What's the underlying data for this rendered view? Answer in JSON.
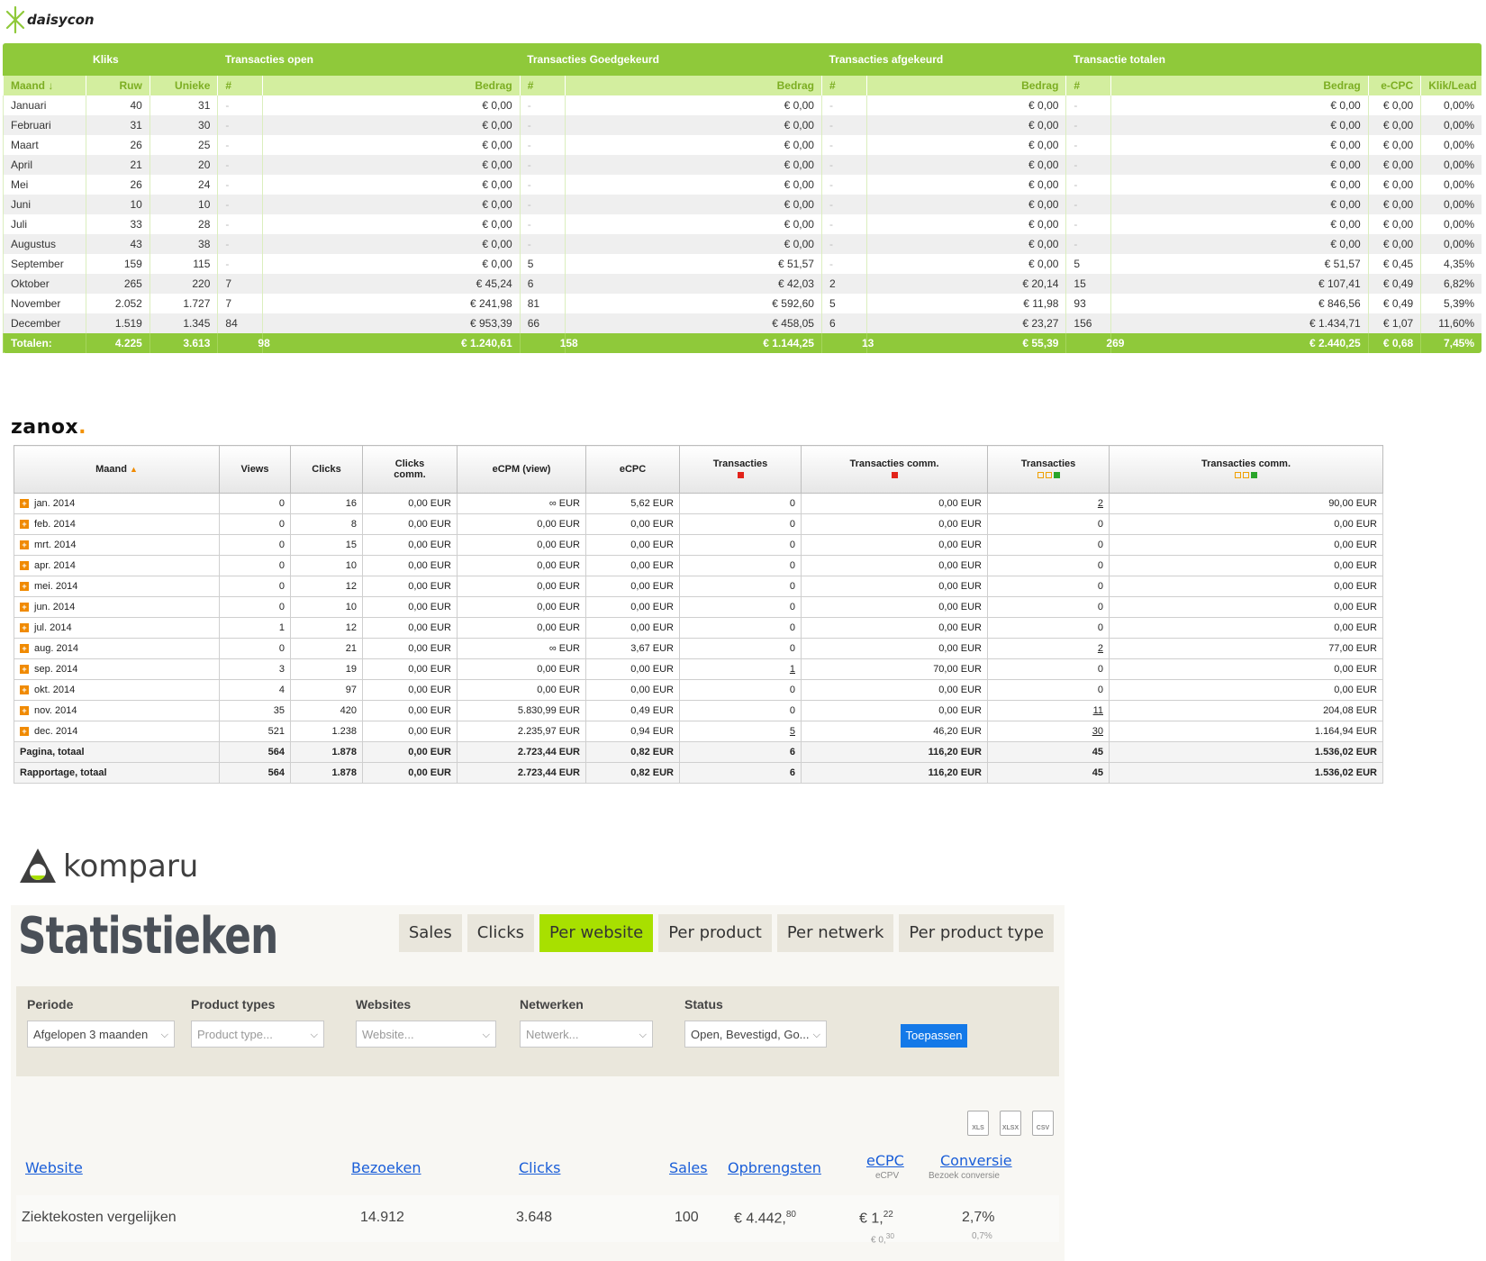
{
  "daisycon": {
    "logo_text": "daisycon",
    "groups": [
      "Kliks",
      "Transacties open",
      "Transacties Goedgekeurd",
      "Transacties afgekeurd",
      "Transactie totalen"
    ],
    "columns": [
      "Maand ↓",
      "Ruw",
      "Unieke",
      "#",
      "Bedrag",
      "#",
      "Bedrag",
      "#",
      "Bedrag",
      "#",
      "Bedrag",
      "e-CPC",
      "Klik/Lead"
    ],
    "rows": [
      [
        "Januari",
        "40",
        "31",
        "-",
        "€ 0,00",
        "-",
        "€ 0,00",
        "-",
        "€ 0,00",
        "-",
        "€ 0,00",
        "€ 0,00",
        "0,00%"
      ],
      [
        "Februari",
        "31",
        "30",
        "-",
        "€ 0,00",
        "-",
        "€ 0,00",
        "-",
        "€ 0,00",
        "-",
        "€ 0,00",
        "€ 0,00",
        "0,00%"
      ],
      [
        "Maart",
        "26",
        "25",
        "-",
        "€ 0,00",
        "-",
        "€ 0,00",
        "-",
        "€ 0,00",
        "-",
        "€ 0,00",
        "€ 0,00",
        "0,00%"
      ],
      [
        "April",
        "21",
        "20",
        "-",
        "€ 0,00",
        "-",
        "€ 0,00",
        "-",
        "€ 0,00",
        "-",
        "€ 0,00",
        "€ 0,00",
        "0,00%"
      ],
      [
        "Mei",
        "26",
        "24",
        "-",
        "€ 0,00",
        "-",
        "€ 0,00",
        "-",
        "€ 0,00",
        "-",
        "€ 0,00",
        "€ 0,00",
        "0,00%"
      ],
      [
        "Juni",
        "10",
        "10",
        "-",
        "€ 0,00",
        "-",
        "€ 0,00",
        "-",
        "€ 0,00",
        "-",
        "€ 0,00",
        "€ 0,00",
        "0,00%"
      ],
      [
        "Juli",
        "33",
        "28",
        "-",
        "€ 0,00",
        "-",
        "€ 0,00",
        "-",
        "€ 0,00",
        "-",
        "€ 0,00",
        "€ 0,00",
        "0,00%"
      ],
      [
        "Augustus",
        "43",
        "38",
        "-",
        "€ 0,00",
        "-",
        "€ 0,00",
        "-",
        "€ 0,00",
        "-",
        "€ 0,00",
        "€ 0,00",
        "0,00%"
      ],
      [
        "September",
        "159",
        "115",
        "-",
        "€ 0,00",
        "5",
        "€ 51,57",
        "-",
        "€ 0,00",
        "5",
        "€ 51,57",
        "€ 0,45",
        "4,35%"
      ],
      [
        "Oktober",
        "265",
        "220",
        "7",
        "€ 45,24",
        "6",
        "€ 42,03",
        "2",
        "€ 20,14",
        "15",
        "€ 107,41",
        "€ 0,49",
        "6,82%"
      ],
      [
        "November",
        "2.052",
        "1.727",
        "7",
        "€ 241,98",
        "81",
        "€ 592,60",
        "5",
        "€ 11,98",
        "93",
        "€ 846,56",
        "€ 0,49",
        "5,39%"
      ],
      [
        "December",
        "1.519",
        "1.345",
        "84",
        "€ 953,39",
        "66",
        "€ 458,05",
        "6",
        "€ 23,27",
        "156",
        "€ 1.434,71",
        "€ 1,07",
        "11,60%"
      ]
    ],
    "totals": [
      "Totalen:",
      "4.225",
      "3.613",
      "98",
      "€ 1.240,61",
      "158",
      "€ 1.144,25",
      "13",
      "€ 55,39",
      "269",
      "€ 2.440,25",
      "€ 0,68",
      "7,45%"
    ],
    "accent": "#8fc93a"
  },
  "zanox": {
    "logo_text": "zanox",
    "columns": [
      "Maand",
      "Views",
      "Clicks",
      "Clicks comm.",
      "eCPM (view)",
      "eCPC",
      "Transacties",
      "Transacties comm.",
      "Transacties",
      "Transacties comm."
    ],
    "rows": [
      [
        "jan. 2014",
        "0",
        "16",
        "0,00 EUR",
        "∞ EUR",
        "5,62 EUR",
        "0",
        "0,00 EUR",
        "2",
        "90,00 EUR"
      ],
      [
        "feb. 2014",
        "0",
        "8",
        "0,00 EUR",
        "0,00 EUR",
        "0,00 EUR",
        "0",
        "0,00 EUR",
        "0",
        "0,00 EUR"
      ],
      [
        "mrt. 2014",
        "0",
        "15",
        "0,00 EUR",
        "0,00 EUR",
        "0,00 EUR",
        "0",
        "0,00 EUR",
        "0",
        "0,00 EUR"
      ],
      [
        "apr. 2014",
        "0",
        "10",
        "0,00 EUR",
        "0,00 EUR",
        "0,00 EUR",
        "0",
        "0,00 EUR",
        "0",
        "0,00 EUR"
      ],
      [
        "mei. 2014",
        "0",
        "12",
        "0,00 EUR",
        "0,00 EUR",
        "0,00 EUR",
        "0",
        "0,00 EUR",
        "0",
        "0,00 EUR"
      ],
      [
        "jun. 2014",
        "0",
        "10",
        "0,00 EUR",
        "0,00 EUR",
        "0,00 EUR",
        "0",
        "0,00 EUR",
        "0",
        "0,00 EUR"
      ],
      [
        "jul. 2014",
        "1",
        "12",
        "0,00 EUR",
        "0,00 EUR",
        "0,00 EUR",
        "0",
        "0,00 EUR",
        "0",
        "0,00 EUR"
      ],
      [
        "aug. 2014",
        "0",
        "21",
        "0,00 EUR",
        "∞ EUR",
        "3,67 EUR",
        "0",
        "0,00 EUR",
        "2",
        "77,00 EUR"
      ],
      [
        "sep. 2014",
        "3",
        "19",
        "0,00 EUR",
        "0,00 EUR",
        "0,00 EUR",
        "1",
        "70,00 EUR",
        "0",
        "0,00 EUR"
      ],
      [
        "okt. 2014",
        "4",
        "97",
        "0,00 EUR",
        "0,00 EUR",
        "0,00 EUR",
        "0",
        "0,00 EUR",
        "0",
        "0,00 EUR"
      ],
      [
        "nov. 2014",
        "35",
        "420",
        "0,00 EUR",
        "5.830,99 EUR",
        "0,49 EUR",
        "0",
        "0,00 EUR",
        "11",
        "204,08 EUR"
      ],
      [
        "dec. 2014",
        "521",
        "1.238",
        "0,00 EUR",
        "2.235,97 EUR",
        "0,94 EUR",
        "5",
        "46,20 EUR",
        "30",
        "1.164,94 EUR"
      ]
    ],
    "totals": [
      [
        "Pagina, totaal",
        "564",
        "1.878",
        "0,00 EUR",
        "2.723,44 EUR",
        "0,82 EUR",
        "6",
        "116,20 EUR",
        "45",
        "1.536,02 EUR"
      ],
      [
        "Rapportage, totaal",
        "564",
        "1.878",
        "0,00 EUR",
        "2.723,44 EUR",
        "0,82 EUR",
        "6",
        "116,20 EUR",
        "45",
        "1.536,02 EUR"
      ]
    ]
  },
  "komparu": {
    "logo_text": "komparu",
    "title": "Statistieken",
    "tabs": [
      "Sales",
      "Clicks",
      "Per website",
      "Per product",
      "Per netwerk",
      "Per product type"
    ],
    "active_tab": "Per website",
    "filters": {
      "periode": {
        "label": "Periode",
        "value": "Afgelopen 3 maanden"
      },
      "product_types": {
        "label": "Product types",
        "placeholder": "Product type..."
      },
      "websites": {
        "label": "Websites",
        "placeholder": "Website..."
      },
      "netwerken": {
        "label": "Netwerken",
        "placeholder": "Netwerk..."
      },
      "status": {
        "label": "Status",
        "value": "Open, Bevestigd, Go..."
      },
      "apply": "Toepassen"
    },
    "downloads": [
      "XLS",
      "XLSX",
      "CSV"
    ],
    "headers": {
      "website": "Website",
      "bezoeken": "Bezoeken",
      "clicks": "Clicks",
      "sales": "Sales",
      "opbrengsten": "Opbrengsten",
      "ecpc": "eCPC",
      "ecpc_sub": "eCPV",
      "conversie": "Conversie",
      "conversie_sub": "Bezoek conversie"
    },
    "row": {
      "website": "Ziektekosten vergelijken",
      "bezoeken": "14.912",
      "clicks": "3.648",
      "sales": "100",
      "opbrengsten": "€ 4.442,",
      "opbrengsten_cents": "80",
      "ecpc": "€ 1,",
      "ecpc_cents": "22",
      "ecpv": "€ 0,",
      "ecpv_cents": "30",
      "conversie": "2,7%",
      "bezoek_conversie": "0,7%"
    },
    "accent": "#a8e000"
  }
}
